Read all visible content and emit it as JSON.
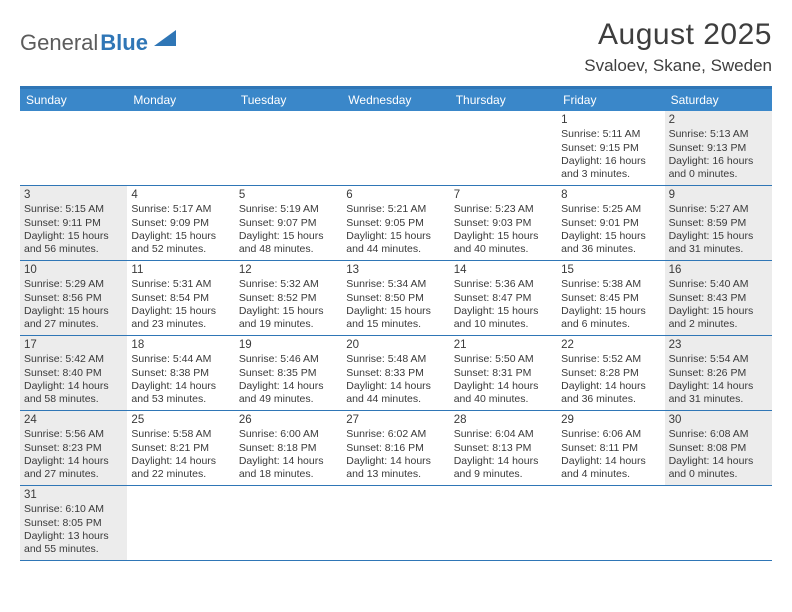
{
  "logo": {
    "text1": "General",
    "text2": "Blue",
    "sail_color": "#2f76b6"
  },
  "header": {
    "month_year": "August 2025",
    "location": "Svaloev, Skane, Sweden"
  },
  "colors": {
    "accent": "#2f76b6",
    "header_bg": "#3a87c9",
    "shade": "#ececec",
    "text": "#3a3a3a"
  },
  "day_names": [
    "Sunday",
    "Monday",
    "Tuesday",
    "Wednesday",
    "Thursday",
    "Friday",
    "Saturday"
  ],
  "weeks": [
    [
      {
        "blank": true
      },
      {
        "blank": true
      },
      {
        "blank": true
      },
      {
        "blank": true
      },
      {
        "blank": true
      },
      {
        "n": "1",
        "sr": "5:11 AM",
        "ss": "9:15 PM",
        "dl": "16 hours and 3 minutes."
      },
      {
        "n": "2",
        "sr": "5:13 AM",
        "ss": "9:13 PM",
        "dl": "16 hours and 0 minutes.",
        "shade": true
      }
    ],
    [
      {
        "n": "3",
        "sr": "5:15 AM",
        "ss": "9:11 PM",
        "dl": "15 hours and 56 minutes.",
        "shade": true
      },
      {
        "n": "4",
        "sr": "5:17 AM",
        "ss": "9:09 PM",
        "dl": "15 hours and 52 minutes."
      },
      {
        "n": "5",
        "sr": "5:19 AM",
        "ss": "9:07 PM",
        "dl": "15 hours and 48 minutes."
      },
      {
        "n": "6",
        "sr": "5:21 AM",
        "ss": "9:05 PM",
        "dl": "15 hours and 44 minutes."
      },
      {
        "n": "7",
        "sr": "5:23 AM",
        "ss": "9:03 PM",
        "dl": "15 hours and 40 minutes."
      },
      {
        "n": "8",
        "sr": "5:25 AM",
        "ss": "9:01 PM",
        "dl": "15 hours and 36 minutes."
      },
      {
        "n": "9",
        "sr": "5:27 AM",
        "ss": "8:59 PM",
        "dl": "15 hours and 31 minutes.",
        "shade": true
      }
    ],
    [
      {
        "n": "10",
        "sr": "5:29 AM",
        "ss": "8:56 PM",
        "dl": "15 hours and 27 minutes.",
        "shade": true
      },
      {
        "n": "11",
        "sr": "5:31 AM",
        "ss": "8:54 PM",
        "dl": "15 hours and 23 minutes."
      },
      {
        "n": "12",
        "sr": "5:32 AM",
        "ss": "8:52 PM",
        "dl": "15 hours and 19 minutes."
      },
      {
        "n": "13",
        "sr": "5:34 AM",
        "ss": "8:50 PM",
        "dl": "15 hours and 15 minutes."
      },
      {
        "n": "14",
        "sr": "5:36 AM",
        "ss": "8:47 PM",
        "dl": "15 hours and 10 minutes."
      },
      {
        "n": "15",
        "sr": "5:38 AM",
        "ss": "8:45 PM",
        "dl": "15 hours and 6 minutes."
      },
      {
        "n": "16",
        "sr": "5:40 AM",
        "ss": "8:43 PM",
        "dl": "15 hours and 2 minutes.",
        "shade": true
      }
    ],
    [
      {
        "n": "17",
        "sr": "5:42 AM",
        "ss": "8:40 PM",
        "dl": "14 hours and 58 minutes.",
        "shade": true
      },
      {
        "n": "18",
        "sr": "5:44 AM",
        "ss": "8:38 PM",
        "dl": "14 hours and 53 minutes."
      },
      {
        "n": "19",
        "sr": "5:46 AM",
        "ss": "8:35 PM",
        "dl": "14 hours and 49 minutes."
      },
      {
        "n": "20",
        "sr": "5:48 AM",
        "ss": "8:33 PM",
        "dl": "14 hours and 44 minutes."
      },
      {
        "n": "21",
        "sr": "5:50 AM",
        "ss": "8:31 PM",
        "dl": "14 hours and 40 minutes."
      },
      {
        "n": "22",
        "sr": "5:52 AM",
        "ss": "8:28 PM",
        "dl": "14 hours and 36 minutes."
      },
      {
        "n": "23",
        "sr": "5:54 AM",
        "ss": "8:26 PM",
        "dl": "14 hours and 31 minutes.",
        "shade": true
      }
    ],
    [
      {
        "n": "24",
        "sr": "5:56 AM",
        "ss": "8:23 PM",
        "dl": "14 hours and 27 minutes.",
        "shade": true
      },
      {
        "n": "25",
        "sr": "5:58 AM",
        "ss": "8:21 PM",
        "dl": "14 hours and 22 minutes."
      },
      {
        "n": "26",
        "sr": "6:00 AM",
        "ss": "8:18 PM",
        "dl": "14 hours and 18 minutes."
      },
      {
        "n": "27",
        "sr": "6:02 AM",
        "ss": "8:16 PM",
        "dl": "14 hours and 13 minutes."
      },
      {
        "n": "28",
        "sr": "6:04 AM",
        "ss": "8:13 PM",
        "dl": "14 hours and 9 minutes."
      },
      {
        "n": "29",
        "sr": "6:06 AM",
        "ss": "8:11 PM",
        "dl": "14 hours and 4 minutes."
      },
      {
        "n": "30",
        "sr": "6:08 AM",
        "ss": "8:08 PM",
        "dl": "14 hours and 0 minutes.",
        "shade": true
      }
    ],
    [
      {
        "n": "31",
        "sr": "6:10 AM",
        "ss": "8:05 PM",
        "dl": "13 hours and 55 minutes.",
        "shade": true
      },
      {
        "blank": true
      },
      {
        "blank": true
      },
      {
        "blank": true
      },
      {
        "blank": true
      },
      {
        "blank": true
      },
      {
        "blank": true
      }
    ]
  ],
  "labels": {
    "sunrise": "Sunrise:",
    "sunset": "Sunset:",
    "daylight": "Daylight:"
  }
}
